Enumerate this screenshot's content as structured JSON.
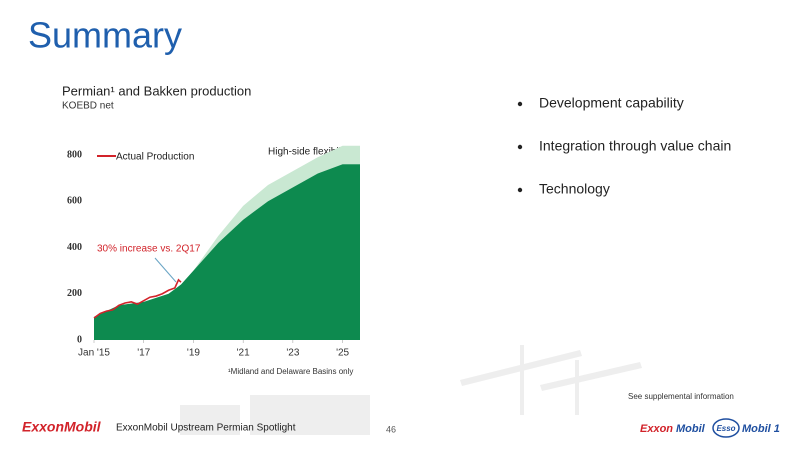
{
  "slide_title": "Summary",
  "chart_data": {
    "type": "area",
    "title": "Permian¹ and Bakken production",
    "subtitle": "KOEBD net",
    "x": [
      2015,
      2016,
      2017,
      2018,
      2018.5,
      2019,
      2020,
      2021,
      2022,
      2023,
      2024,
      2025,
      2025.7
    ],
    "series": [
      {
        "color": "#0d8a4f",
        "values": [
          100,
          150,
          165,
          200,
          240,
          300,
          420,
          520,
          600,
          660,
          720,
          760,
          760
        ]
      },
      {
        "color": "#c9e8d2",
        "values": [
          0,
          0,
          0,
          0,
          0,
          0,
          30,
          60,
          70,
          70,
          70,
          80,
          80
        ]
      },
      {
        "name": "Actual Production",
        "color": "#d2232a",
        "type": "line",
        "x": [
          2015,
          2015.25,
          2015.5,
          2015.75,
          2016,
          2016.25,
          2016.5,
          2016.75,
          2017,
          2017.25,
          2017.5,
          2017.75,
          2018,
          2018.25,
          2018.4,
          2018.5
        ],
        "values": [
          95,
          115,
          125,
          130,
          150,
          160,
          165,
          155,
          170,
          185,
          190,
          200,
          215,
          225,
          260,
          250
        ]
      }
    ],
    "annotations": [
      "High-side flexibility",
      "30% increase vs. 2Q17"
    ],
    "footnote": "¹Midland and Delaware Basins only",
    "xlim": [
      2015,
      2025.7
    ],
    "xticks": [
      {
        "value": 2015,
        "label": "Jan '15"
      },
      {
        "value": 2017,
        "label": "'17"
      },
      {
        "value": 2019,
        "label": "'19"
      },
      {
        "value": 2021,
        "label": "'21"
      },
      {
        "value": 2023,
        "label": "'23"
      },
      {
        "value": 2025,
        "label": "'25"
      }
    ],
    "ylim": [
      0,
      850
    ],
    "yticks": [
      0,
      200,
      400,
      600,
      800
    ],
    "grid": false
  },
  "bullets": [
    "Development capability",
    "Integration through value chain",
    "Technology"
  ],
  "supplemental": "See supplemental information",
  "footer": {
    "logo": "ExxonMobil",
    "text": "ExxonMobil Upstream Permian Spotlight",
    "page": "46",
    "brands": [
      "Exxon",
      "Mobil",
      "Esso",
      "Mobil 1"
    ]
  }
}
